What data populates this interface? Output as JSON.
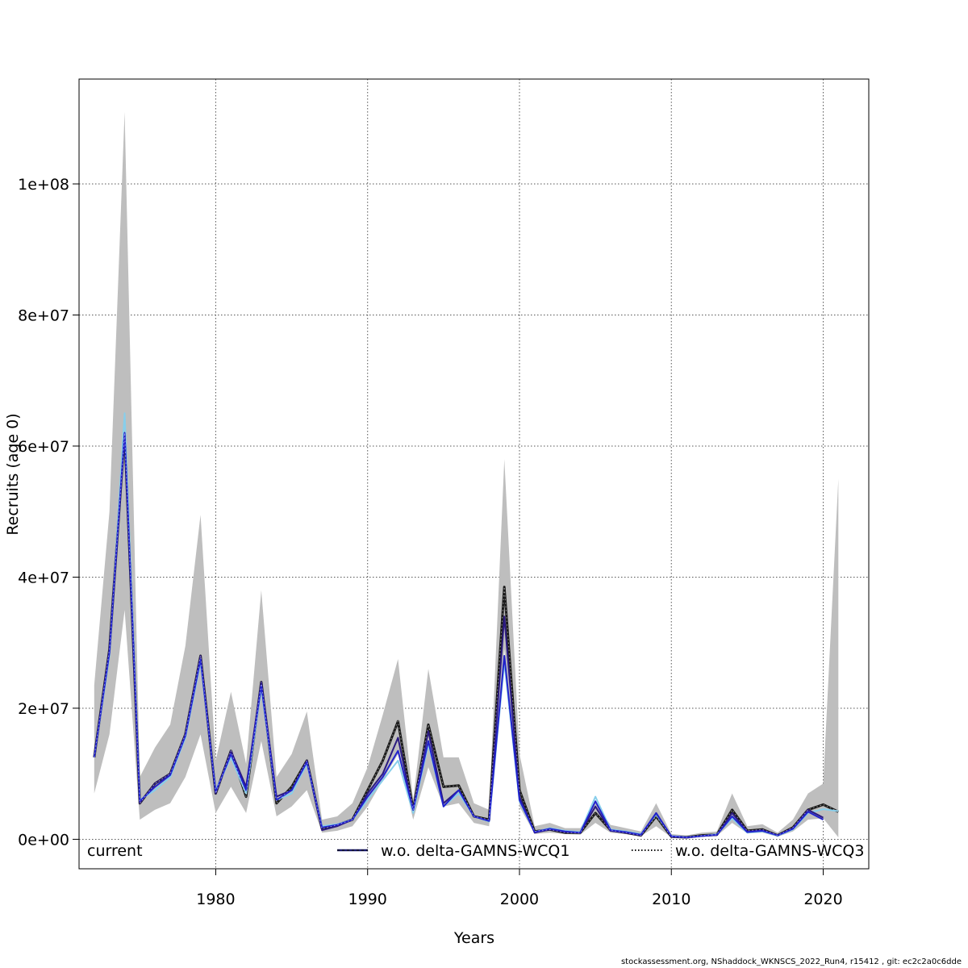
{
  "chart_data": {
    "type": "line",
    "xlabel": "Years",
    "ylabel": "Recruits (age 0)",
    "xlim": [
      1971,
      2023
    ],
    "ylim": [
      -4500000,
      116000000
    ],
    "x_ticks": [
      1980,
      1990,
      2000,
      2010,
      2020
    ],
    "y_ticks": [
      0,
      20000000,
      40000000,
      60000000,
      80000000,
      100000000
    ],
    "y_tick_labels": [
      "0e+00",
      "2e+07",
      "4e+07",
      "6e+07",
      "8e+07",
      "1e+08"
    ],
    "grid": true,
    "legend_position": "bottom",
    "legend": [
      {
        "label": "current",
        "style": "band"
      },
      {
        "label": "w.o. delta-GAMNS-WCQ1",
        "style": "line-dashed",
        "color": "#1f1f7a"
      },
      {
        "label": "w.o. delta-GAMNS-WCQ3",
        "style": "line-dotted",
        "color": "#1e2a8f"
      }
    ],
    "colors": {
      "band": "#bebebe",
      "current": "#1a1a1a",
      "wcq1": "#2b1a80",
      "wcq3": "#2222cc",
      "extra": "#87ceeb"
    },
    "x": [
      1972,
      1973,
      1974,
      1975,
      1976,
      1977,
      1978,
      1979,
      1980,
      1981,
      1982,
      1983,
      1984,
      1985,
      1986,
      1987,
      1988,
      1989,
      1990,
      1991,
      1992,
      1993,
      1994,
      1995,
      1996,
      1997,
      1998,
      1999,
      2000,
      2001,
      2002,
      2003,
      2004,
      2005,
      2006,
      2007,
      2008,
      2009,
      2010,
      2011,
      2012,
      2013,
      2014,
      2015,
      2016,
      2017,
      2018,
      2019,
      2020,
      2021
    ],
    "band_upper": [
      23500000,
      50000000,
      111000000,
      9500000,
      14000000,
      17500000,
      29500000,
      49500000,
      12000000,
      22500000,
      11500000,
      38000000,
      9500000,
      13000000,
      19500000,
      3000000,
      3500000,
      5500000,
      11000000,
      19000000,
      27500000,
      6000000,
      26000000,
      12500000,
      12500000,
      5500000,
      4500000,
      58000000,
      13000000,
      2000000,
      2500000,
      1700000,
      1700000,
      5500000,
      2200000,
      1700000,
      1200000,
      5500000,
      800000,
      600000,
      1000000,
      1200000,
      7000000,
      2000000,
      2300000,
      1000000,
      3000000,
      7000000,
      8500000,
      55000000
    ],
    "band_lower": [
      7000000,
      16000000,
      35000000,
      3000000,
      4500000,
      5500000,
      9500000,
      16000000,
      4000000,
      8000000,
      4000000,
      15000000,
      3500000,
      5000000,
      7500000,
      1000000,
      1300000,
      2000000,
      5000000,
      9000000,
      13000000,
      3000000,
      11000000,
      5000000,
      5500000,
      2500000,
      2000000,
      29000000,
      5000000,
      800000,
      1000000,
      800000,
      700000,
      2500000,
      1000000,
      800000,
      500000,
      2000000,
      300000,
      200000,
      400000,
      500000,
      2500000,
      900000,
      1000000,
      400000,
      1200000,
      3000000,
      3200000,
      300000
    ],
    "series": [
      {
        "name": "current",
        "values": [
          12500000,
          29000000,
          62000000,
          5500000,
          8500000,
          10000000,
          16000000,
          28000000,
          7000000,
          13500000,
          6500000,
          24000000,
          5500000,
          8000000,
          12000000,
          1600000,
          2200000,
          3000000,
          7500000,
          12000000,
          18000000,
          4500000,
          17500000,
          8000000,
          8200000,
          3500000,
          3000000,
          38500000,
          7500000,
          1200000,
          1500000,
          1000000,
          1000000,
          4000000,
          1400000,
          1000000,
          600000,
          3500000,
          400000,
          300000,
          600000,
          700000,
          4500000,
          1300000,
          1500000,
          600000,
          1800000,
          4500000,
          5300000,
          4200000
        ]
      },
      {
        "name": "w.o. delta-GAMNS-WCQ1",
        "values": [
          12500000,
          29000000,
          62000000,
          5500000,
          8500000,
          10000000,
          16000000,
          28000000,
          7000000,
          13500000,
          8000000,
          24000000,
          6500000,
          7500000,
          12000000,
          1400000,
          2000000,
          3000000,
          7000000,
          10000000,
          15500000,
          4500000,
          16500000,
          5500000,
          7500000,
          3500000,
          2800000,
          34000000,
          6500000,
          1000000,
          1500000,
          1100000,
          1000000,
          5000000,
          1300000,
          1000000,
          600000,
          4000000,
          400000,
          250000,
          500000,
          650000,
          4000000,
          1200000,
          1400000,
          600000,
          1700000,
          4500000,
          3300000,
          null
        ]
      },
      {
        "name": "w.o. delta-GAMNS-WCQ3",
        "values": [
          12500000,
          28500000,
          62000000,
          5800000,
          8000000,
          9800000,
          15800000,
          27500000,
          7200000,
          13000000,
          7500000,
          23500000,
          6000000,
          7500000,
          11800000,
          1800000,
          2200000,
          3000000,
          6500000,
          9500000,
          13500000,
          4500000,
          15000000,
          5000000,
          7500000,
          3500000,
          2800000,
          28000000,
          6000000,
          1100000,
          1600000,
          1200000,
          1000000,
          5800000,
          1400000,
          1100000,
          700000,
          4000000,
          450000,
          300000,
          500000,
          700000,
          3500000,
          1100000,
          1300000,
          600000,
          1600000,
          4200000,
          3000000,
          null
        ]
      },
      {
        "name": "",
        "values": [
          12500000,
          28000000,
          65000000,
          6000000,
          7500000,
          9500000,
          15500000,
          27000000,
          7500000,
          12500000,
          7000000,
          23000000,
          6000000,
          7000000,
          11500000,
          2000000,
          2300000,
          3000000,
          6000000,
          9000000,
          12000000,
          4000000,
          14500000,
          5000000,
          7000000,
          3500000,
          2700000,
          27000000,
          5800000,
          1100000,
          1700000,
          1300000,
          1100000,
          6500000,
          1500000,
          1200000,
          800000,
          3800000,
          500000,
          300000,
          500000,
          750000,
          3200000,
          1000000,
          1200000,
          550000,
          1500000,
          4000000,
          4600000,
          4300000
        ]
      }
    ]
  },
  "footer": "stockassessment.org, NShaddock_WKNSCS_2022_Run4, r15412 , git: ec2c2a0c6dde"
}
